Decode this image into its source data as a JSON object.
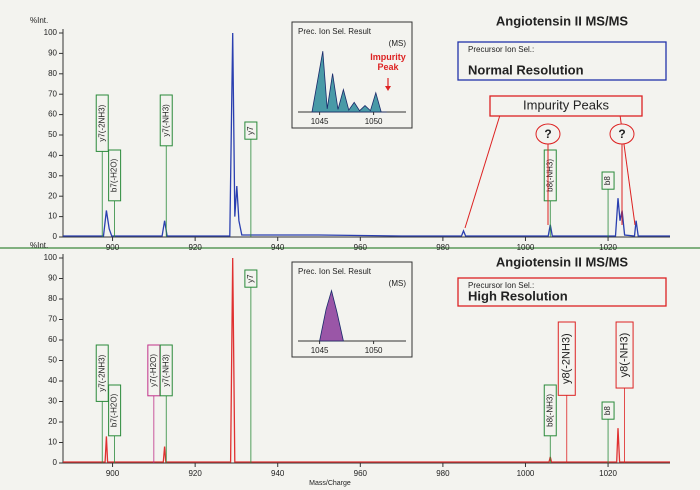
{
  "chart_data": [
    {
      "type": "line",
      "title": "Angiotensin II  MS/MS",
      "subtitle": "Precursor Ion Sel.:",
      "mode": "Normal Resolution",
      "mode_color": "#2233aa",
      "ylabel": "%Int.",
      "color": "#2a3fb0",
      "xlim": [
        888,
        1035
      ],
      "ylim": [
        0,
        100
      ],
      "xticks": [
        900,
        920,
        940,
        960,
        980,
        1000,
        1020
      ],
      "yticks": [
        0,
        10,
        20,
        30,
        40,
        50,
        60,
        70,
        80,
        90,
        100
      ],
      "x": [
        888,
        897.8,
        898.5,
        899.2,
        899.8,
        912,
        912.6,
        913.2,
        928.4,
        929.1,
        929.6,
        930.1,
        930.6,
        931.3,
        950,
        970,
        984.5,
        985,
        985.5,
        1005.5,
        1006,
        1006.5,
        1021.8,
        1022.4,
        1022.9,
        1023.4,
        1024,
        1026.4,
        1026.8,
        1027.3,
        1035
      ],
      "values": [
        0.5,
        0.5,
        13,
        4,
        0.5,
        0.5,
        8,
        0.5,
        0.5,
        100,
        10,
        25,
        8,
        1,
        1,
        0.5,
        0.5,
        3,
        0.5,
        0.5,
        6,
        0.5,
        0.5,
        19,
        8,
        13,
        1,
        0.5,
        8,
        0.5,
        0.5
      ],
      "annotations": [
        {
          "text": "y7(-2NH3)",
          "x": 897.5,
          "color": "#2a8a3a"
        },
        {
          "text": "b7(-H2O)",
          "x": 900.5,
          "color": "#2a8a3a"
        },
        {
          "text": "y7(-NH3)",
          "x": 913,
          "color": "#2a8a3a"
        },
        {
          "text": "y7",
          "x": 933.5,
          "color": "#2a8a3a"
        },
        {
          "text": "b8(-NH3)",
          "x": 1006,
          "color": "#2a8a3a"
        },
        {
          "text": "b8",
          "x": 1020,
          "color": "#2a8a3a"
        }
      ],
      "impurity": {
        "label": "Impurity Peaks",
        "marks": [
          "?",
          "?"
        ]
      },
      "inset": {
        "title": "Prec. Ion Sel. Result",
        "subtitle": "(MS)",
        "note": "Impurity Peak",
        "color": "#2a8a9a",
        "xlim": [
          1043,
          1053
        ],
        "ylim": [
          0,
          100
        ],
        "xticks": [
          1045,
          1050
        ],
        "x": [
          1044.3,
          1045.3,
          1045.7,
          1046.2,
          1046.7,
          1047.2,
          1047.7,
          1048.2,
          1048.7,
          1049.2,
          1049.7,
          1050.2,
          1050.7,
          1051.2
        ],
        "values": [
          0,
          95,
          5,
          60,
          4,
          35,
          3,
          15,
          2,
          10,
          2,
          30,
          0,
          0
        ]
      }
    },
    {
      "type": "line",
      "title": "Angiotensin II  MS/MS",
      "subtitle": "Precursor Ion Sel.:",
      "mode": "High Resolution",
      "mode_color": "#dd2222",
      "ylabel": "%Int.",
      "xlabel": "Mass/Charge",
      "color": "#e03030",
      "xlim": [
        888,
        1035
      ],
      "ylim": [
        0,
        100
      ],
      "xticks": [
        900,
        920,
        940,
        960,
        980,
        1000,
        1020
      ],
      "yticks": [
        0,
        10,
        20,
        30,
        40,
        50,
        60,
        70,
        80,
        90,
        100
      ],
      "x": [
        888,
        898.2,
        898.5,
        898.8,
        912.3,
        912.6,
        912.9,
        928.6,
        929.1,
        929.6,
        1005.7,
        1006,
        1006.3,
        1022.1,
        1022.4,
        1022.8,
        1035
      ],
      "values": [
        0.5,
        0.5,
        13,
        0.5,
        0.5,
        8,
        0.5,
        0.5,
        100,
        0.5,
        0.5,
        3,
        0.5,
        0.5,
        17,
        0.5,
        0.5
      ],
      "annotations": [
        {
          "text": "y7(-2NH3)",
          "x": 897.5,
          "color": "#2a8a3a"
        },
        {
          "text": "b7(-H2O)",
          "x": 900.5,
          "color": "#2a8a3a"
        },
        {
          "text": "y7(-H2O)",
          "x": 910,
          "color": "#c0308a"
        },
        {
          "text": "y7(-NH3)",
          "x": 913,
          "color": "#2a8a3a"
        },
        {
          "text": "y7",
          "x": 933.5,
          "color": "#2a8a3a"
        },
        {
          "text": "b8(-NH3)",
          "x": 1006,
          "color": "#2a8a3a"
        },
        {
          "text": "y8(-2NH3)",
          "x": 1010,
          "color": "#dd2222"
        },
        {
          "text": "b8",
          "x": 1020,
          "color": "#2a8a3a"
        },
        {
          "text": "y8(-NH3)",
          "x": 1024,
          "color": "#dd2222"
        }
      ],
      "inset": {
        "title": "Prec. Ion Sel. Result",
        "subtitle": "(MS)",
        "color": "#8a3a9a",
        "xlim": [
          1043,
          1053
        ],
        "ylim": [
          0,
          100
        ],
        "xticks": [
          1045,
          1050
        ],
        "x": [
          1045,
          1045.6,
          1046.1,
          1046.6,
          1047.2
        ],
        "values": [
          0,
          60,
          95,
          55,
          0
        ]
      }
    }
  ]
}
